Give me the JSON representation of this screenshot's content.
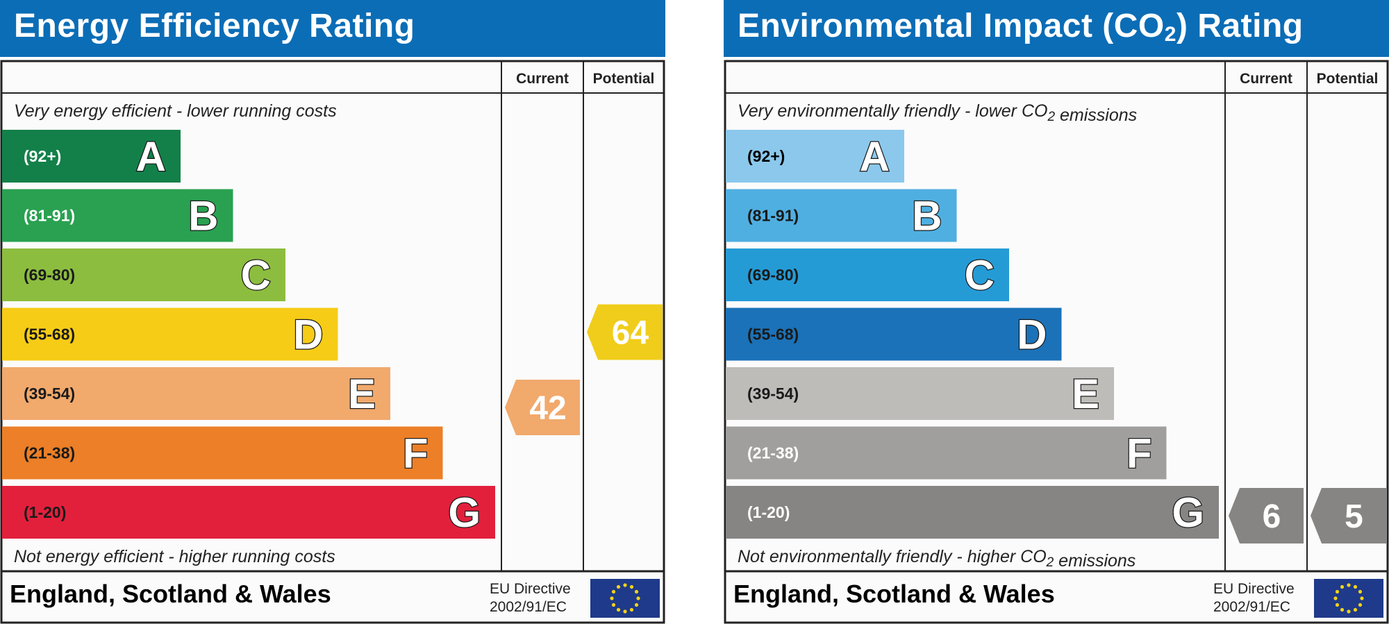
{
  "chart_data": [
    {
      "type": "bar",
      "title": "Energy Efficiency Rating",
      "header_current": "Current",
      "header_potential": "Potential",
      "top_note": "Very energy efficient - lower running costs",
      "bottom_note": "Not energy efficient - higher running costs",
      "bands": [
        {
          "range": "(92+)",
          "letter": "A",
          "color": "#138049",
          "label_color": "#ffffff"
        },
        {
          "range": "(81-91)",
          "letter": "B",
          "color": "#29a151",
          "label_color": "#ffffff"
        },
        {
          "range": "(69-80)",
          "letter": "C",
          "color": "#8cbd3f",
          "label_color": "#1a1a1a"
        },
        {
          "range": "(55-68)",
          "letter": "D",
          "color": "#f6cc17",
          "label_color": "#1a1a1a"
        },
        {
          "range": "(39-54)",
          "letter": "E",
          "color": "#f1a96c",
          "label_color": "#1a1a1a"
        },
        {
          "range": "(21-38)",
          "letter": "F",
          "color": "#ec7f27",
          "label_color": "#1a1a1a"
        },
        {
          "range": "(1-20)",
          "letter": "G",
          "color": "#e2203c",
          "label_color": "#1a1a1a"
        }
      ],
      "current": {
        "value": 42,
        "band": "E",
        "color": "#f1a96c"
      },
      "potential": {
        "value": 64,
        "band": "D",
        "color": "#f0cd1a"
      }
    },
    {
      "type": "bar",
      "title": "Environmental Impact (CO2) Rating",
      "header_current": "Current",
      "header_potential": "Potential",
      "top_note": "Very environmentally friendly - lower CO2 emissions",
      "bottom_note": "Not environmentally friendly - higher CO2 emissions",
      "bands": [
        {
          "range": "(92+)",
          "letter": "A",
          "color": "#8bc8ec",
          "label_color": "#000000"
        },
        {
          "range": "(81-91)",
          "letter": "B",
          "color": "#4fafe1",
          "label_color": "#1a1a1a"
        },
        {
          "range": "(69-80)",
          "letter": "C",
          "color": "#259bd6",
          "label_color": "#1a1a1a"
        },
        {
          "range": "(55-68)",
          "letter": "D",
          "color": "#1b72b8",
          "label_color": "#1a1a1a"
        },
        {
          "range": "(39-54)",
          "letter": "E",
          "color": "#bdbcb9",
          "label_color": "#1a1a1a"
        },
        {
          "range": "(21-38)",
          "letter": "F",
          "color": "#a09f9d",
          "label_color": "#ffffff"
        },
        {
          "range": "(1-20)",
          "letter": "G",
          "color": "#868584",
          "label_color": "#ffffff"
        }
      ],
      "current": {
        "value": 6,
        "band": "G",
        "color": "#868584"
      },
      "potential": {
        "value": 5,
        "band": "G",
        "color": "#868584"
      }
    }
  ],
  "footer": {
    "region": "England, Scotland & Wales",
    "eu_line1": "EU Directive",
    "eu_line2": "2002/91/EC"
  }
}
